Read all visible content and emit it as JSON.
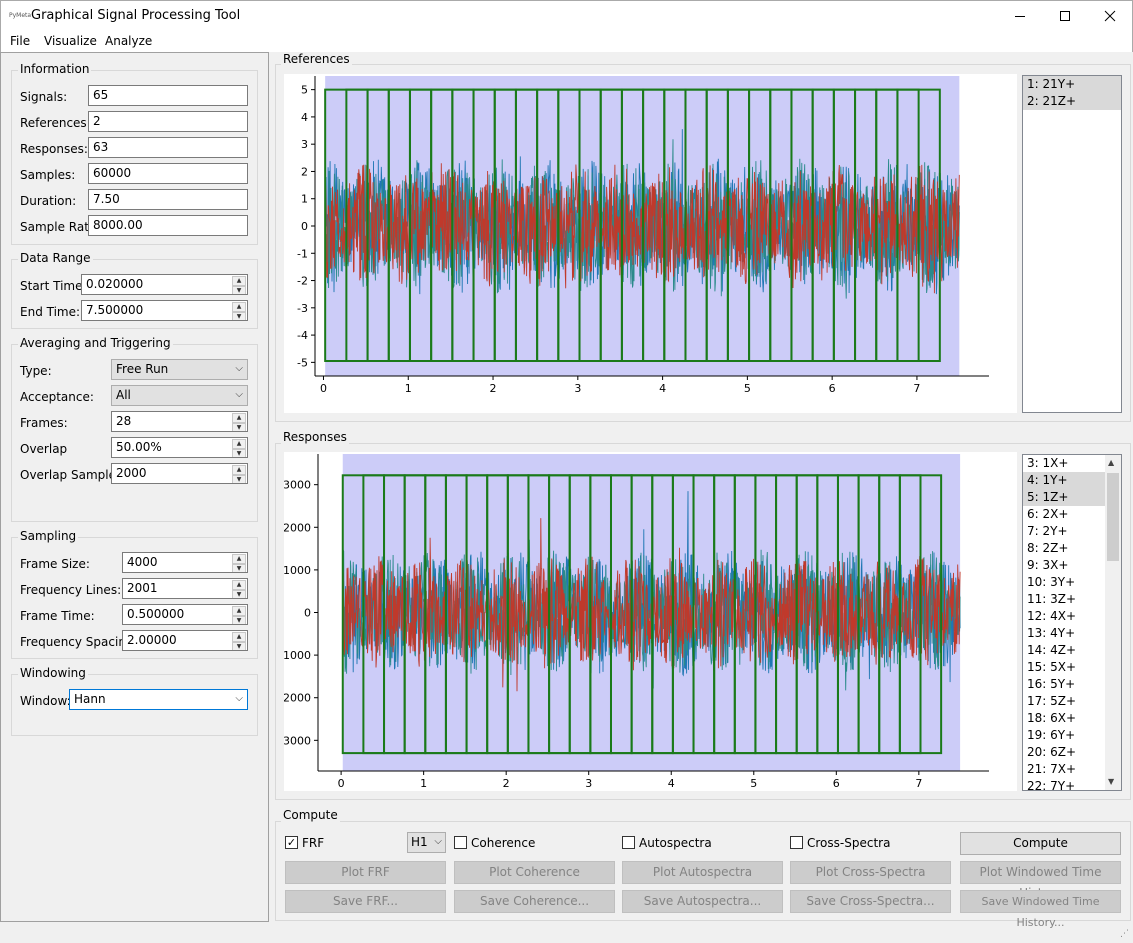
{
  "app": {
    "logo_text": "PyMeta",
    "title": "Graphical Signal Processing Tool"
  },
  "menu": [
    "File",
    "Visualize",
    "Analyze"
  ],
  "information": {
    "title": "Information",
    "fields": [
      {
        "label": "Signals:",
        "value": "65"
      },
      {
        "label": "References:",
        "value": "2"
      },
      {
        "label": "Responses:",
        "value": "63"
      },
      {
        "label": "Samples:",
        "value": "60000"
      },
      {
        "label": "Duration:",
        "value": "7.50"
      },
      {
        "label": "Sample Rate",
        "value": "8000.00"
      }
    ]
  },
  "data_range": {
    "title": "Data Range",
    "fields": [
      {
        "label": "Start Time:",
        "value": "0.020000"
      },
      {
        "label": "End Time:",
        "value": "7.500000"
      }
    ]
  },
  "averaging": {
    "title": "Averaging and Triggering",
    "type_label": "Type:",
    "type_value": "Free Run",
    "acceptance_label": "Acceptance:",
    "acceptance_value": "All",
    "frames_label": "Frames:",
    "frames_value": "28",
    "overlap_label": "Overlap",
    "overlap_value": "50.00%",
    "overlap_samples_label": "Overlap Samples:",
    "overlap_samples_value": "2000"
  },
  "sampling": {
    "title": "Sampling",
    "fields": [
      {
        "label": "Frame Size:",
        "value": "4000"
      },
      {
        "label": "Frequency Lines:",
        "value": "2001"
      },
      {
        "label": "Frame Time:",
        "value": "0.500000"
      },
      {
        "label": "Frequency Spacing:",
        "value": "2.00000"
      }
    ]
  },
  "windowing": {
    "title": "Windowing",
    "window_label": "Window:",
    "window_value": "Hann"
  },
  "references": {
    "title": "References",
    "channels": [
      "1: 21Y+",
      "2: 21Z+"
    ],
    "selected": [
      0,
      1
    ]
  },
  "responses": {
    "title": "Responses",
    "channels": [
      "3: 1X+",
      "4: 1Y+",
      "5: 1Z+",
      "6: 2X+",
      "7: 2Y+",
      "8: 2Z+",
      "9: 3X+",
      "10: 3Y+",
      "11: 3Z+",
      "12: 4X+",
      "13: 4Y+",
      "14: 4Z+",
      "15: 5X+",
      "16: 5Y+",
      "17: 5Z+",
      "18: 6X+",
      "19: 6Y+",
      "20: 6Z+",
      "21: 7X+",
      "22: 7Y+"
    ],
    "selected": [
      1,
      2
    ]
  },
  "colors": {
    "plot_bg": "#ffffff",
    "region": "#ccccf8",
    "frame": "#1a7a1a",
    "signal_a": "#1f77b4",
    "signal_b": "#c0392b",
    "signal_c": "#2a8a8a"
  },
  "chart_data": [
    {
      "type": "line",
      "name_hint": "references",
      "x_ticks": [
        0,
        1,
        2,
        3,
        4,
        5,
        6,
        7
      ],
      "y_ticks": [
        -5,
        -4,
        -3,
        -2,
        -1,
        0,
        1,
        2,
        3,
        4,
        5
      ],
      "xlim": [
        -0.1,
        7.85
      ],
      "ylim": [
        -5.5,
        5.5
      ],
      "region": [
        0.02,
        7.5
      ],
      "frame_start": 0.02,
      "frame_length": 0.5,
      "frame_step": 0.25,
      "frames": 28,
      "frame_ylim": [
        -4.95,
        5.0
      ],
      "signal_amplitude": 2.0,
      "signal_peak": 3.0
    },
    {
      "type": "line",
      "name_hint": "responses",
      "x_ticks": [
        0,
        1,
        2,
        3,
        4,
        5,
        6,
        7
      ],
      "y_ticks": [
        -3000,
        -2000,
        -1000,
        0,
        1000,
        2000,
        3000
      ],
      "xlim": [
        -0.28,
        7.85
      ],
      "ylim": [
        -3720,
        3720
      ],
      "region": [
        0.02,
        7.5
      ],
      "frame_start": 0.02,
      "frame_length": 0.5,
      "frame_step": 0.25,
      "frames": 28,
      "frame_ylim": [
        -3300,
        3220
      ],
      "signal_amplitude": 1200,
      "signal_peak": 2300
    }
  ],
  "compute": {
    "title": "Compute",
    "frf_label": "FRF",
    "frf_checked": "✓",
    "estimator": "H1",
    "coherence_label": "Coherence",
    "autospectra_label": "Autospectra",
    "cross_spectra_label": "Cross-Spectra",
    "compute_button": "Compute",
    "plot_buttons": [
      "Plot FRF",
      "Plot Coherence",
      "Plot Autospectra",
      "Plot Cross-Spectra",
      "Plot Windowed Time History"
    ],
    "save_buttons": [
      "Save FRF...",
      "Save Coherence...",
      "Save Autospectra...",
      "Save Cross-Spectra...",
      "Save Windowed Time History..."
    ]
  }
}
